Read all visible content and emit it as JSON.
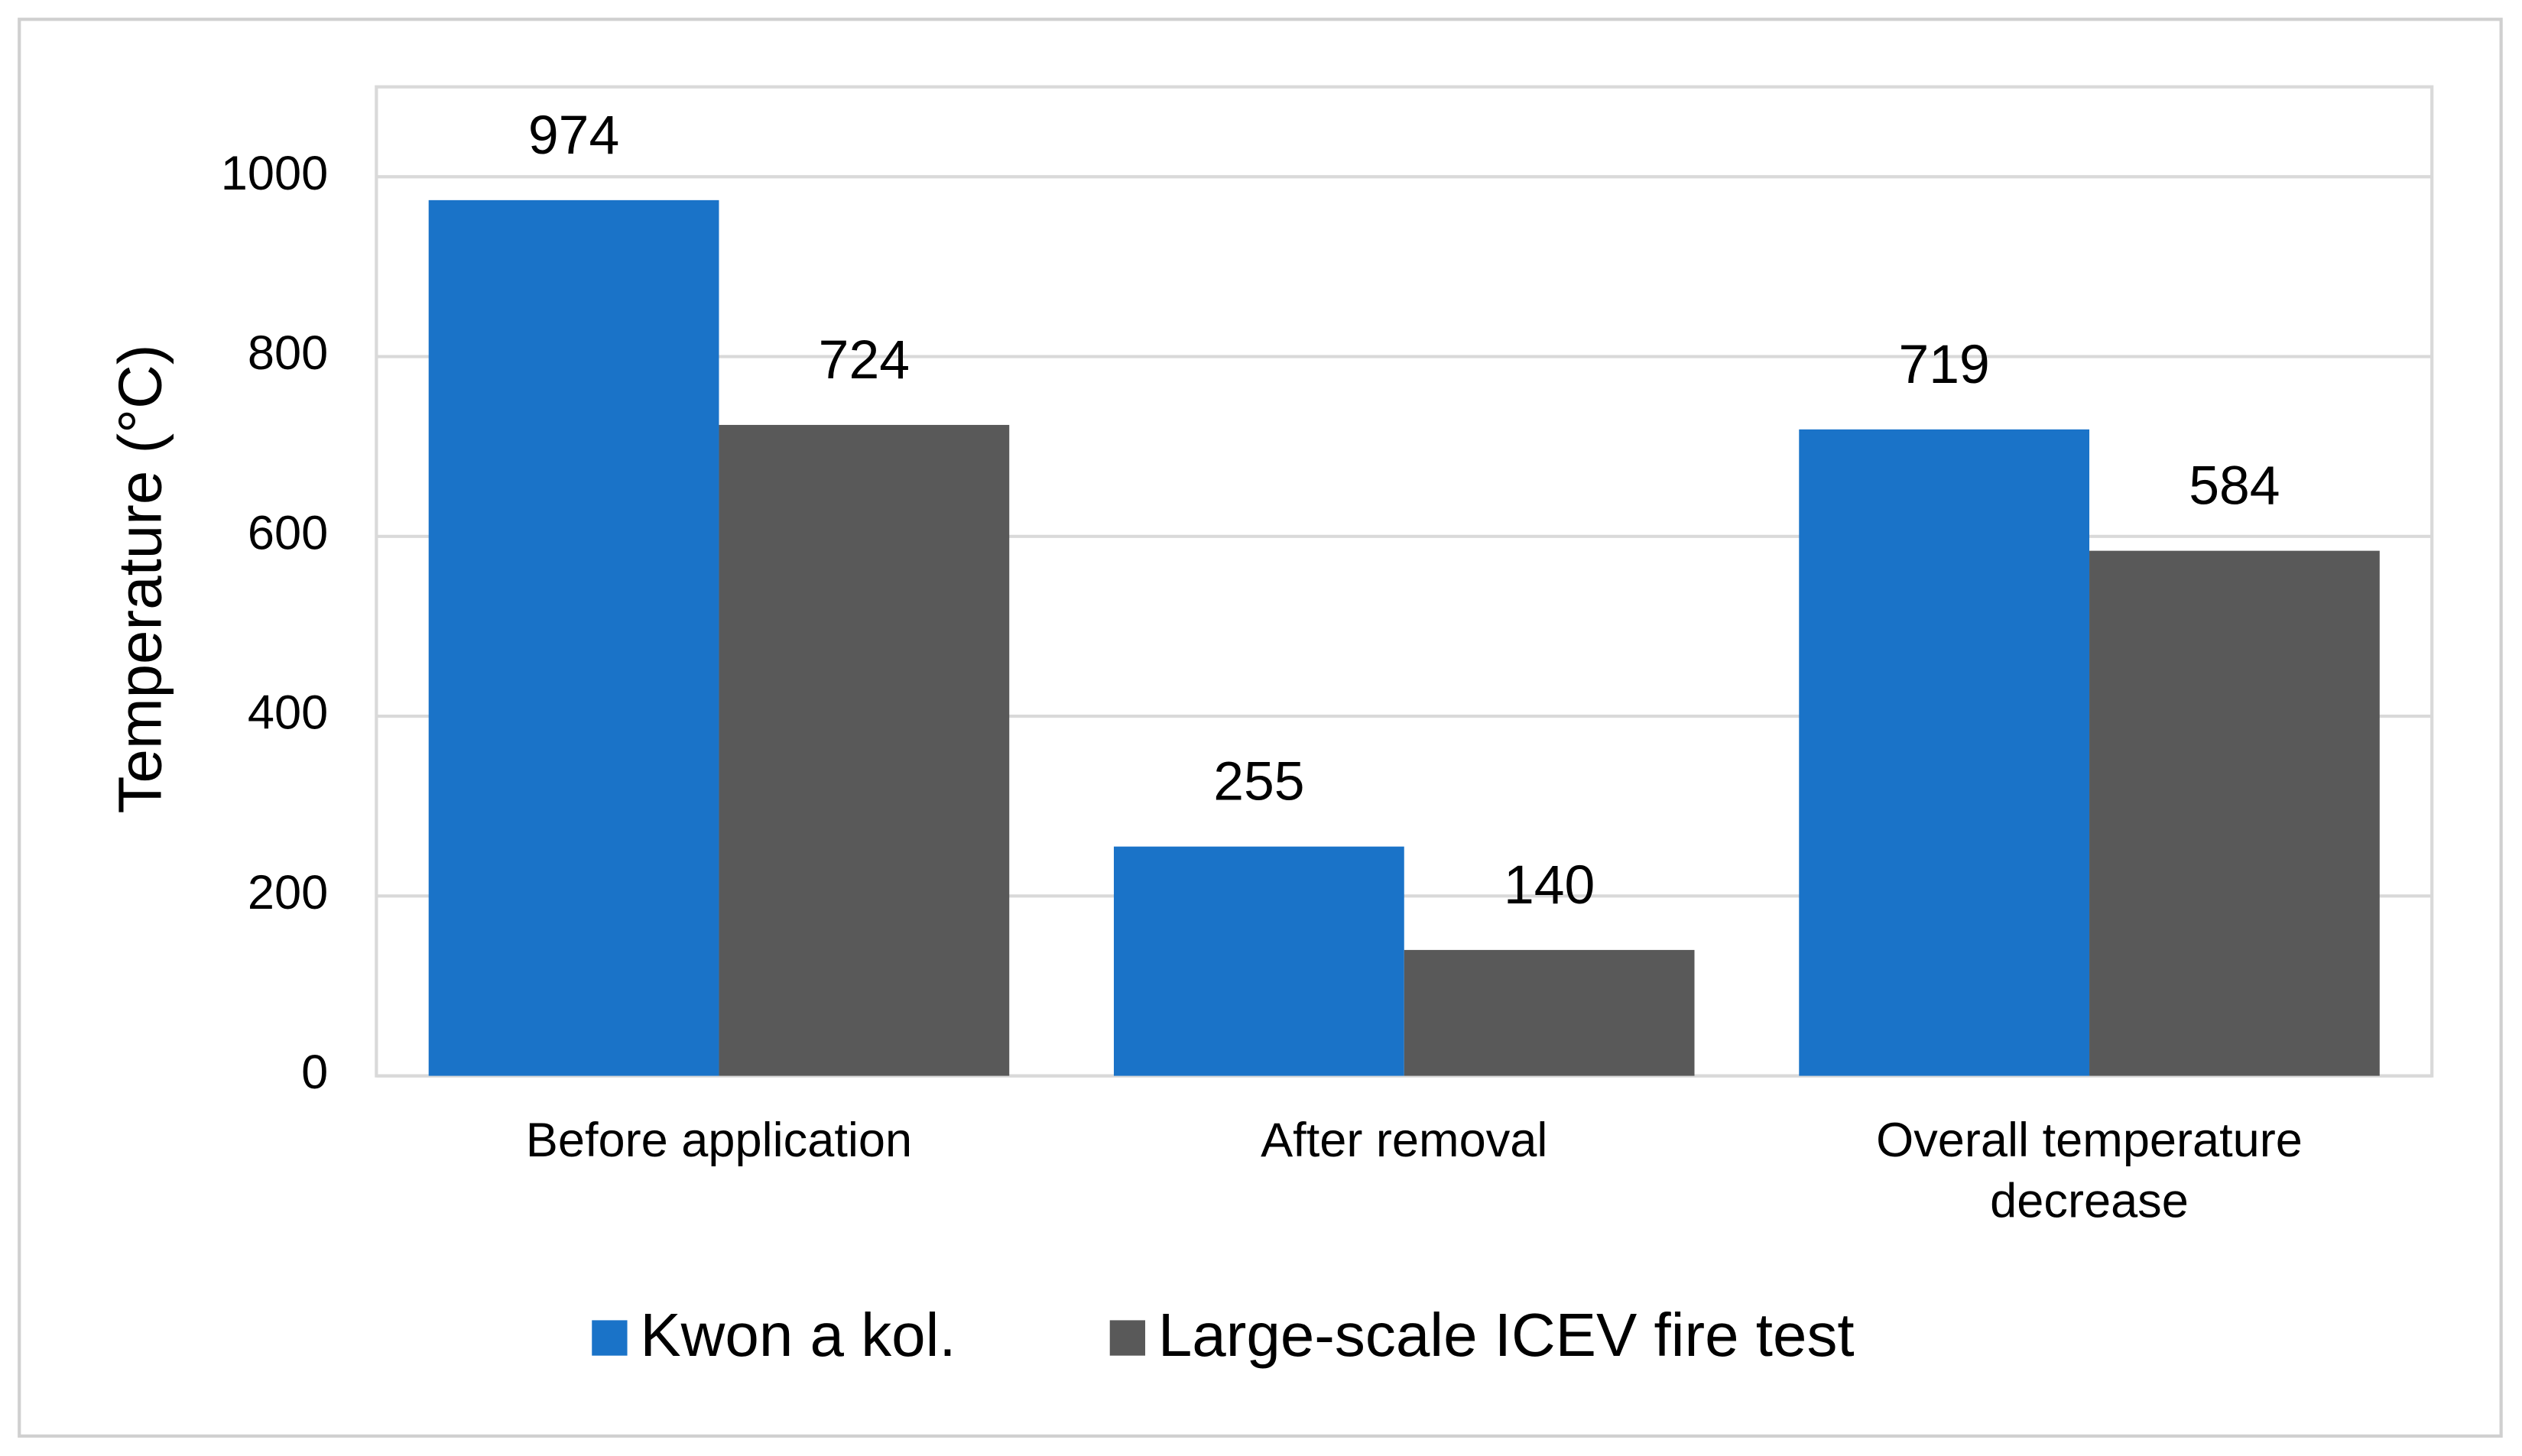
{
  "chart_data": {
    "type": "bar",
    "y_label": "Temperature (°C)",
    "categories": [
      "Before application",
      "After removal",
      "Overall temperature decrease"
    ],
    "series": [
      {
        "name": "Kwon a kol.",
        "color": "#1a73c8",
        "values": [
          974,
          255,
          719
        ]
      },
      {
        "name": "Large-scale ICEV fire test",
        "color": "#595959",
        "values": [
          724,
          140,
          584
        ]
      }
    ],
    "ylim": [
      0,
      1100
    ],
    "yticks": [
      0,
      200,
      400,
      600,
      800,
      1000
    ],
    "grid": true,
    "legend": "bottom"
  }
}
